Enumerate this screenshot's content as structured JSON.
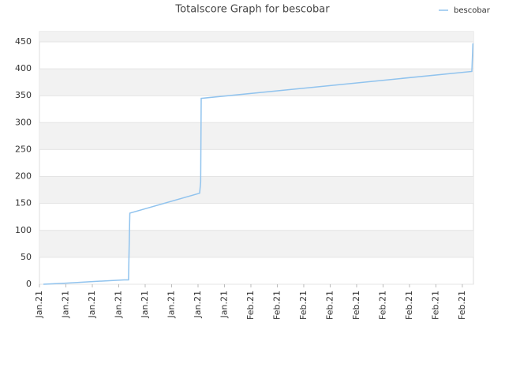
{
  "chart_data": {
    "type": "line",
    "title": "Totalscore Graph for bescobar",
    "x": [
      0.15,
      1,
      2,
      3.2,
      3.37,
      3.39,
      3.42,
      6.06,
      6.1,
      6.12,
      16.36,
      16.4
    ],
    "series": [
      {
        "name": "bescobar",
        "color": "#90c3ee",
        "values": [
          0,
          2,
          5,
          8,
          8,
          60,
          132,
          169,
          190,
          345,
          395,
          447
        ]
      }
    ],
    "xlim": [
      0,
      16.42
    ],
    "xticks": [
      {
        "value": 0,
        "label": "Jan.21"
      },
      {
        "value": 1,
        "label": "Jan.21"
      },
      {
        "value": 2,
        "label": "Jan.21"
      },
      {
        "value": 3,
        "label": "Jan.21"
      },
      {
        "value": 4,
        "label": "Jan.21"
      },
      {
        "value": 5,
        "label": "Jan.21"
      },
      {
        "value": 6,
        "label": "Jan.21"
      },
      {
        "value": 7,
        "label": "Jan.21"
      },
      {
        "value": 8,
        "label": "Feb.21"
      },
      {
        "value": 9,
        "label": "Feb.21"
      },
      {
        "value": 10,
        "label": "Feb.21"
      },
      {
        "value": 11,
        "label": "Feb.21"
      },
      {
        "value": 12,
        "label": "Feb.21"
      },
      {
        "value": 13,
        "label": "Feb.21"
      },
      {
        "value": 14,
        "label": "Feb.21"
      },
      {
        "value": 15,
        "label": "Feb.21"
      },
      {
        "value": 16,
        "label": "Feb.21"
      }
    ],
    "ylim": [
      0,
      469
    ],
    "yticks": [
      0,
      50,
      100,
      150,
      200,
      250,
      300,
      350,
      400,
      450
    ],
    "grid": true,
    "legend": "top-right"
  }
}
